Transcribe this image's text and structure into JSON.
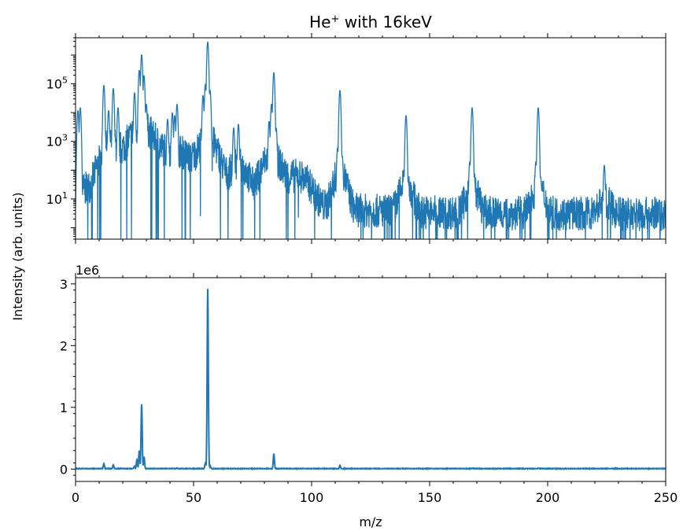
{
  "chart_data": [
    {
      "type": "line",
      "panel": "top",
      "title_main": "He",
      "title_sup": "+",
      "title_rest": " with 16keV",
      "yscale": "log",
      "xlim": [
        0,
        250
      ],
      "ylim": [
        0.4,
        4000000
      ],
      "ytick_labels": [
        {
          "base": "10",
          "exp": "1",
          "value": 10
        },
        {
          "base": "10",
          "exp": "3",
          "value": 1000
        },
        {
          "base": "10",
          "exp": "5",
          "value": 100000
        }
      ],
      "color": "#1f77b4",
      "peaks": [
        {
          "x": 1,
          "y": 12000
        },
        {
          "x": 2,
          "y": 15000
        },
        {
          "x": 12,
          "y": 90000
        },
        {
          "x": 14,
          "y": 12000
        },
        {
          "x": 16,
          "y": 70000
        },
        {
          "x": 18,
          "y": 15000
        },
        {
          "x": 25,
          "y": 50000
        },
        {
          "x": 27,
          "y": 300000
        },
        {
          "x": 28,
          "y": 1050000
        },
        {
          "x": 29,
          "y": 200000
        },
        {
          "x": 30,
          "y": 20000
        },
        {
          "x": 39,
          "y": 6000
        },
        {
          "x": 41,
          "y": 10000
        },
        {
          "x": 42,
          "y": 8000
        },
        {
          "x": 43,
          "y": 20000
        },
        {
          "x": 54,
          "y": 40000
        },
        {
          "x": 55,
          "y": 100000
        },
        {
          "x": 56,
          "y": 2900000
        },
        {
          "x": 57,
          "y": 60000
        },
        {
          "x": 67,
          "y": 3000
        },
        {
          "x": 69,
          "y": 4000
        },
        {
          "x": 82,
          "y": 5000
        },
        {
          "x": 83,
          "y": 20000
        },
        {
          "x": 84,
          "y": 250000
        },
        {
          "x": 85,
          "y": 3000
        },
        {
          "x": 92,
          "y": 60
        },
        {
          "x": 95,
          "y": 40
        },
        {
          "x": 111,
          "y": 600
        },
        {
          "x": 112,
          "y": 60000
        },
        {
          "x": 113,
          "y": 300
        },
        {
          "x": 139,
          "y": 80
        },
        {
          "x": 140,
          "y": 8000
        },
        {
          "x": 141,
          "y": 40
        },
        {
          "x": 167,
          "y": 200
        },
        {
          "x": 168,
          "y": 15000
        },
        {
          "x": 169,
          "y": 60
        },
        {
          "x": 195,
          "y": 200
        },
        {
          "x": 196,
          "y": 15000
        },
        {
          "x": 197,
          "y": 60
        },
        {
          "x": 224,
          "y": 150
        }
      ]
    },
    {
      "type": "line",
      "panel": "bottom",
      "yscale": "linear",
      "xlim": [
        0,
        250
      ],
      "ylim": [
        -200000,
        3100000
      ],
      "offset_label": "1e6",
      "xticks": [
        0,
        50,
        100,
        150,
        200,
        250
      ],
      "xtick_labels": [
        "0",
        "50",
        "100",
        "150",
        "200",
        "250"
      ],
      "yticks": [
        0,
        1000000,
        2000000,
        3000000
      ],
      "ytick_labels": [
        "0",
        "1",
        "2",
        "3"
      ],
      "xlabel": "m/z",
      "color": "#1f77b4",
      "peaks": [
        {
          "x": 12,
          "y": 90000
        },
        {
          "x": 16,
          "y": 70000
        },
        {
          "x": 25,
          "y": 50000
        },
        {
          "x": 26,
          "y": 150000
        },
        {
          "x": 27,
          "y": 300000
        },
        {
          "x": 28,
          "y": 1050000
        },
        {
          "x": 29,
          "y": 200000
        },
        {
          "x": 41,
          "y": 10000
        },
        {
          "x": 43,
          "y": 20000
        },
        {
          "x": 55,
          "y": 100000
        },
        {
          "x": 56,
          "y": 2920000
        },
        {
          "x": 57,
          "y": 60000
        },
        {
          "x": 84,
          "y": 250000
        },
        {
          "x": 112,
          "y": 60000
        },
        {
          "x": 168,
          "y": 15000
        },
        {
          "x": 196,
          "y": 15000
        }
      ]
    }
  ],
  "shared_ylabel": "Intensity (arb. units)"
}
